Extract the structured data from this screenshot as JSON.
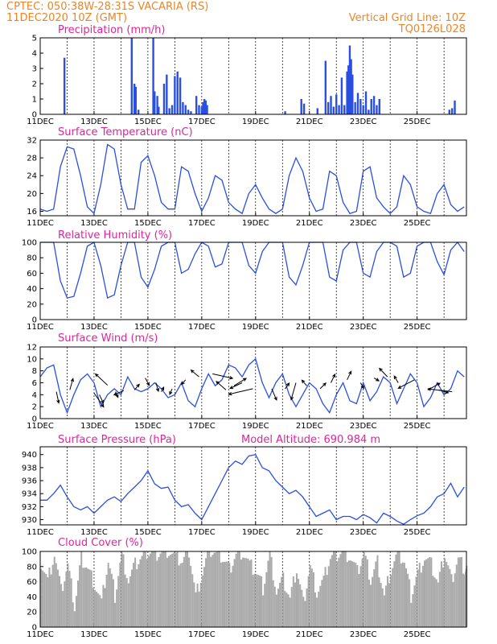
{
  "header": {
    "line1_left": "CPTEC:   050:38W-28:31S   VACARIA (RS)",
    "line2_left": "11DEC2020 10Z (GMT)",
    "line1_right": "Vertical Grid Line: 10Z",
    "line2_right": "TQ0126L028"
  },
  "model_altitude": "Model Altitude: 690.984 m",
  "x_ticks": [
    "11DEC",
    "13DEC",
    "15DEC",
    "17DEC",
    "19DEC",
    "21DEC",
    "23DEC",
    "25DEC"
  ],
  "colors": {
    "line": "#2a4fe0",
    "title": "#e0249a",
    "header": "#e8862a",
    "cloud": "#a9a9a9"
  },
  "chart_data": [
    {
      "type": "bar",
      "title": "Precipitation (mm/h)",
      "ylim": [
        0,
        5
      ],
      "yticks": [
        "0",
        "1",
        "2",
        "3",
        "4",
        "5"
      ],
      "x_units": "days since 11DEC 10Z",
      "x": [
        0.9,
        3.4,
        3.5,
        3.55,
        3.65,
        4.2,
        4.25,
        4.35,
        4.4,
        4.6,
        4.7,
        4.8,
        4.9,
        5.0,
        5.1,
        5.2,
        5.3,
        5.4,
        5.5,
        5.6,
        5.8,
        5.9,
        6.0,
        6.05,
        6.1,
        6.15,
        6.2,
        9.1,
        9.7,
        9.8,
        10.3,
        10.6,
        10.7,
        10.8,
        10.9,
        11.0,
        11.1,
        11.2,
        11.3,
        11.4,
        11.45,
        11.5,
        11.55,
        11.6,
        11.7,
        11.8,
        11.9,
        12.0,
        12.1,
        12.2,
        12.3,
        12.4,
        12.5,
        12.6,
        15.2,
        15.3,
        15.4
      ],
      "values": [
        3.7,
        5.0,
        2.0,
        1.8,
        0.3,
        5.0,
        1.5,
        1.2,
        0.5,
        2.0,
        2.6,
        0.4,
        0.6,
        2.5,
        2.8,
        2.4,
        0.8,
        0.6,
        0.3,
        0.2,
        1.2,
        0.6,
        0.5,
        0.8,
        1.0,
        0.9,
        0.6,
        0.2,
        1.0,
        0.7,
        0.4,
        3.5,
        0.8,
        1.2,
        0.5,
        1.3,
        0.6,
        2.4,
        0.6,
        2.8,
        3.2,
        4.5,
        3.6,
        2.6,
        0.8,
        1.4,
        1.0,
        0.6,
        1.5,
        0.3,
        1.0,
        1.2,
        0.6,
        1.0,
        0.3,
        0.4,
        0.9
      ]
    },
    {
      "type": "line",
      "title": "Surface Temperature (nC)",
      "ylim": [
        15,
        32
      ],
      "yticks": [
        "16",
        "20",
        "24",
        "28",
        "32"
      ],
      "x": [
        0,
        0.25,
        0.5,
        0.75,
        1,
        1.25,
        1.5,
        1.75,
        2,
        2.25,
        2.5,
        2.75,
        3,
        3.25,
        3.5,
        3.75,
        4,
        4.25,
        4.5,
        4.75,
        5,
        5.25,
        5.5,
        5.75,
        6,
        6.25,
        6.5,
        6.75,
        7,
        7.25,
        7.5,
        7.75,
        8,
        8.25,
        8.5,
        8.75,
        9,
        9.25,
        9.5,
        9.75,
        10,
        10.25,
        10.5,
        10.75,
        11,
        11.25,
        11.5,
        11.75,
        12,
        12.25,
        12.5,
        12.75,
        13,
        13.25,
        13.5,
        13.75,
        14,
        14.25,
        14.5,
        14.75,
        15,
        15.25,
        15.5,
        15.75
      ],
      "values": [
        16.5,
        16,
        16.5,
        26,
        30.5,
        30,
        24,
        17,
        15.5,
        22,
        31,
        30,
        22,
        16.5,
        16.5,
        27,
        28.5,
        24,
        18,
        16.5,
        16.5,
        26,
        25,
        20,
        16,
        19,
        24,
        23,
        18,
        16.5,
        15.5,
        20,
        22,
        19,
        16.5,
        15.5,
        16.5,
        24,
        28,
        25,
        19,
        16,
        16.5,
        25,
        24,
        18,
        15.5,
        16,
        25,
        26,
        19,
        17,
        15.5,
        17,
        24,
        22,
        17,
        16,
        15.5,
        20,
        22,
        17.5,
        16,
        17
      ]
    },
    {
      "type": "line",
      "title": "Relative Humidity (%)",
      "ylim": [
        0,
        100
      ],
      "yticks": [
        "0",
        "20",
        "40",
        "60",
        "80",
        "100"
      ],
      "x": [
        0,
        0.25,
        0.5,
        0.75,
        1,
        1.25,
        1.5,
        1.75,
        2,
        2.25,
        2.5,
        2.75,
        3,
        3.25,
        3.5,
        3.75,
        4,
        4.25,
        4.5,
        4.75,
        5,
        5.25,
        5.5,
        5.75,
        6,
        6.25,
        6.5,
        6.75,
        7,
        7.25,
        7.5,
        7.75,
        8,
        8.25,
        8.5,
        8.75,
        9,
        9.25,
        9.5,
        9.75,
        10,
        10.25,
        10.5,
        10.75,
        11,
        11.25,
        11.5,
        11.75,
        12,
        12.25,
        12.5,
        12.75,
        13,
        13.25,
        13.5,
        13.75,
        14,
        14.25,
        14.5,
        14.75,
        15,
        15.25,
        15.5,
        15.75
      ],
      "values": [
        100,
        100,
        100,
        50,
        28,
        30,
        60,
        95,
        100,
        70,
        28,
        32,
        70,
        100,
        100,
        55,
        42,
        65,
        95,
        100,
        100,
        60,
        65,
        85,
        100,
        95,
        68,
        72,
        100,
        100,
        100,
        70,
        60,
        88,
        100,
        100,
        100,
        55,
        45,
        70,
        100,
        100,
        100,
        55,
        50,
        90,
        100,
        100,
        60,
        55,
        88,
        100,
        100,
        95,
        55,
        60,
        95,
        100,
        100,
        75,
        58,
        90,
        100,
        88
      ]
    },
    {
      "type": "line",
      "title": "Surface Wind (m/s)",
      "ylim": [
        0,
        12
      ],
      "yticks": [
        "0",
        "2",
        "4",
        "6",
        "8",
        "10",
        "12"
      ],
      "x": [
        0,
        0.25,
        0.5,
        0.75,
        1,
        1.25,
        1.5,
        1.75,
        2,
        2.25,
        2.5,
        2.75,
        3,
        3.25,
        3.5,
        3.75,
        4,
        4.25,
        4.5,
        4.75,
        5,
        5.25,
        5.5,
        5.75,
        6,
        6.25,
        6.5,
        6.75,
        7,
        7.25,
        7.5,
        7.75,
        8,
        8.25,
        8.5,
        8.75,
        9,
        9.25,
        9.5,
        9.75,
        10,
        10.25,
        10.5,
        10.75,
        11,
        11.25,
        11.5,
        11.75,
        12,
        12.25,
        12.5,
        12.75,
        13,
        13.25,
        13.5,
        13.75,
        14,
        14.25,
        14.5,
        14.75,
        15,
        15.25,
        15.5,
        15.75
      ],
      "values": [
        7,
        8.5,
        9,
        4,
        1,
        4,
        6.5,
        7.5,
        6,
        2,
        4,
        5,
        4,
        7,
        5,
        4.5,
        5,
        6,
        5,
        3.5,
        4,
        6,
        3,
        2,
        5,
        7.5,
        5.5,
        6.5,
        9,
        8.5,
        7,
        9,
        10,
        6,
        3.5,
        6,
        7.5,
        4,
        2,
        4,
        6,
        5,
        2.5,
        1,
        4,
        6,
        3,
        2.5,
        6,
        3,
        4.5,
        7,
        6,
        2.5,
        5,
        7.5,
        6,
        2,
        3.5,
        6,
        4,
        5,
        8,
        7
      ]
    },
    {
      "type": "line",
      "title": "Surface Pressure (hPa)",
      "ylim": [
        929.2,
        941.2
      ],
      "yticks": [
        "930",
        "932",
        "934",
        "936",
        "938",
        "940"
      ],
      "x": [
        0,
        0.25,
        0.5,
        0.75,
        1,
        1.25,
        1.5,
        1.75,
        2,
        2.25,
        2.5,
        2.75,
        3,
        3.25,
        3.5,
        3.75,
        4,
        4.25,
        4.5,
        4.75,
        5,
        5.25,
        5.5,
        5.75,
        6,
        6.25,
        6.5,
        6.75,
        7,
        7.25,
        7.5,
        7.75,
        8,
        8.25,
        8.5,
        8.75,
        9,
        9.25,
        9.5,
        9.75,
        10,
        10.25,
        10.5,
        10.75,
        11,
        11.25,
        11.5,
        11.75,
        12,
        12.25,
        12.5,
        12.75,
        13,
        13.25,
        13.5,
        13.75,
        14,
        14.25,
        14.5,
        14.75,
        15,
        15.25,
        15.5,
        15.75
      ],
      "values": [
        933,
        933,
        934,
        935.3,
        933.5,
        932,
        931.5,
        932,
        931,
        932,
        933,
        933.5,
        932.8,
        934,
        935,
        936,
        937.5,
        935.5,
        934.8,
        935,
        933,
        932,
        932.3,
        931,
        930,
        932,
        934,
        936,
        938,
        939,
        938.5,
        939.8,
        940,
        938,
        937.5,
        936,
        935,
        934,
        934.5,
        933.5,
        932,
        930.5,
        931,
        931.5,
        930,
        930.5,
        930.5,
        930,
        930.8,
        930.3,
        929.5,
        931,
        930.5,
        929.8,
        929.3,
        930,
        930.6,
        931,
        932,
        933.5,
        934,
        935.6,
        933.5,
        935
      ]
    },
    {
      "type": "area",
      "title": "Cloud Cover (%)",
      "ylim": [
        0,
        100
      ],
      "yticks": [
        "0",
        "20",
        "40",
        "60",
        "80",
        "100"
      ],
      "x": [
        0,
        0.25,
        0.5,
        0.75,
        1,
        1.25,
        1.5,
        1.75,
        2,
        2.25,
        2.5,
        2.75,
        3,
        3.25,
        3.5,
        3.75,
        4,
        4.25,
        4.5,
        4.75,
        5,
        5.25,
        5.5,
        5.75,
        6,
        6.25,
        6.5,
        6.75,
        7,
        7.25,
        7.5,
        7.75,
        8,
        8.25,
        8.5,
        8.75,
        9,
        9.25,
        9.5,
        9.75,
        10,
        10.25,
        10.5,
        10.75,
        11,
        11.25,
        11.5,
        11.75,
        12,
        12.25,
        12.5,
        12.75,
        13,
        13.25,
        13.5,
        13.75,
        14,
        14.25,
        14.5,
        14.75,
        15,
        15.25,
        15.5,
        15.75
      ],
      "values": [
        85,
        60,
        95,
        45,
        80,
        25,
        90,
        75,
        55,
        30,
        85,
        40,
        95,
        60,
        80,
        90,
        98,
        95,
        98,
        100,
        90,
        85,
        100,
        40,
        70,
        100,
        95,
        90,
        75,
        95,
        98,
        80,
        70,
        50,
        95,
        45,
        60,
        35,
        75,
        30,
        80,
        45,
        60,
        90,
        95,
        98,
        90,
        70,
        95,
        60,
        85,
        40,
        75,
        95,
        85,
        40,
        70,
        90,
        80,
        55,
        95,
        60,
        90,
        75
      ]
    },
    {
      "type": "quiver",
      "title": "",
      "x": [
        0.6,
        1.1,
        2.0,
        2.2,
        2.5,
        2.8,
        3.1,
        3.5,
        3.9,
        4.3,
        4.5,
        4.9,
        5.4,
        5.9,
        6.4,
        6.9,
        7.2,
        7.5,
        7.9,
        8.6,
        9.1,
        9.5,
        9.9,
        10.4,
        10.8,
        11.4,
        11.9,
        12.4,
        12.9,
        13.3,
        13.9,
        14.4,
        14.8,
        15.3
      ],
      "values": [
        4.5,
        4.8,
        4.3,
        4.0,
        5.6,
        4.5,
        4.7,
        4.8,
        6.8,
        6.0,
        4.5,
        5.0,
        6.5,
        7.0,
        7.5,
        4.8,
        5.5,
        6.0,
        5.0,
        5.0,
        5.0,
        6.0,
        5.5,
        5.0,
        6.0,
        6.5,
        6.0,
        6.8,
        7.0,
        6.0,
        6.5,
        4.8,
        4.8,
        4.5
      ],
      "u": [
        0.3,
        0.4,
        1.2,
        0.5,
        -1.5,
        0.3,
        -1.2,
        0.6,
        0.5,
        0.3,
        0.3,
        -0.3,
        -0.5,
        -1.0,
        2.5,
        -1.2,
        1.5,
        -1.5,
        -3.0,
        0.6,
        0.5,
        -0.6,
        -0.6,
        0.7,
        0.5,
        0.5,
        0.4,
        0.6,
        -1.0,
        -0.5,
        -2.0,
        1.5,
        1.2,
        -3.0
      ],
      "v": [
        -2.0,
        2.0,
        -2.5,
        -1.5,
        2.0,
        -1.0,
        -0.8,
        1.0,
        -1.3,
        -1.5,
        0.8,
        -1.0,
        -0.8,
        1.2,
        -0.8,
        1.5,
        1.3,
        -1.0,
        -1.0,
        -2.0,
        1.0,
        -3.0,
        1.0,
        1.0,
        1.5,
        1.5,
        -1.0,
        -0.5,
        1.5,
        1.2,
        -1.5,
        1.2,
        -0.5,
        0.5
      ]
    }
  ]
}
